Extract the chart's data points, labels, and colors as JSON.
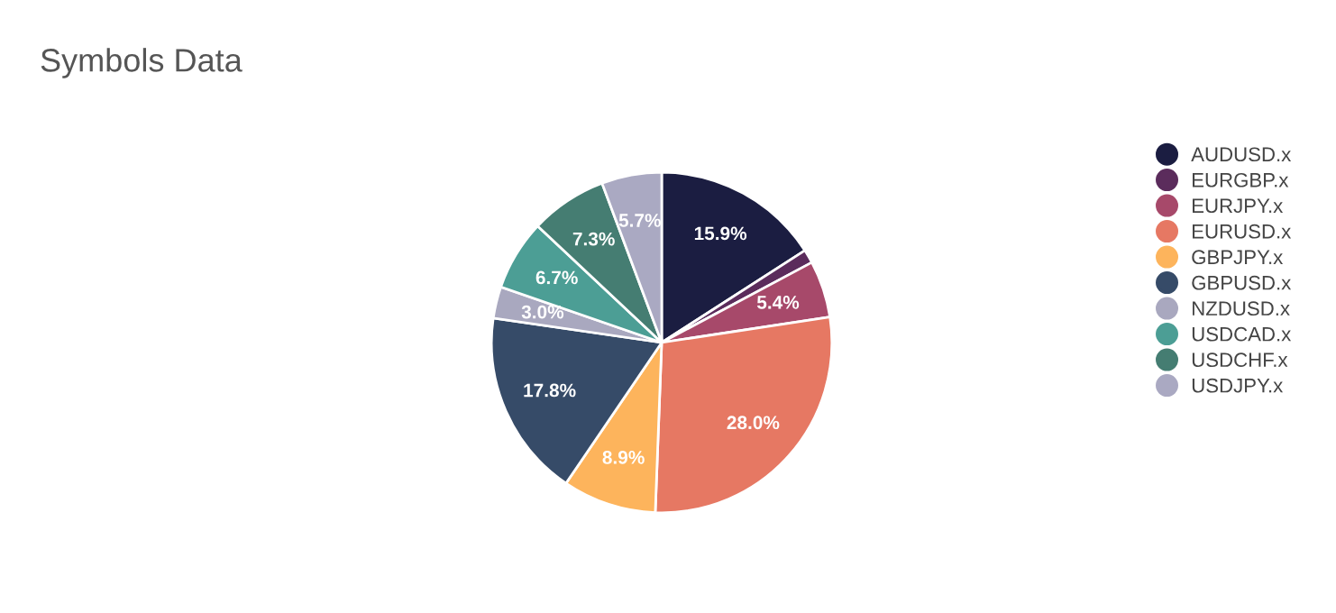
{
  "chart_data": {
    "type": "pie",
    "title": "Symbols Data",
    "categories": [
      "AUDUSD.x",
      "EURGBP.x",
      "EURJPY.x",
      "EURUSD.x",
      "GBPJPY.x",
      "GBPUSD.x",
      "NZDUSD.x",
      "USDCAD.x",
      "USDCHF.x",
      "USDJPY.x"
    ],
    "values": [
      15.9,
      1.3,
      5.4,
      28.0,
      8.9,
      17.8,
      3.0,
      6.7,
      7.3,
      5.7
    ],
    "value_labels": [
      "15.9%",
      null,
      "5.4%",
      "28.0%",
      "8.9%",
      "17.8%",
      "3.0%",
      "6.7%",
      "7.3%",
      "5.7%"
    ],
    "colors": [
      "#1b1d41",
      "#5b2c5c",
      "#a7496a",
      "#e67863",
      "#fdb45c",
      "#364b68",
      "#a9a8bf",
      "#4c9e95",
      "#457d72",
      "#aaa9c2"
    ],
    "legend": "right"
  }
}
